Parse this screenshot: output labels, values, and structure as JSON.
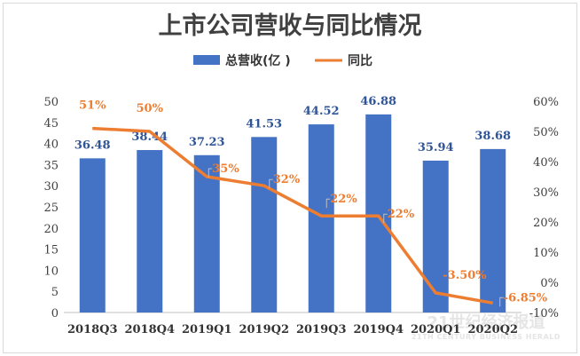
{
  "chart_data": {
    "type": "bar+line",
    "title": "上市公司营收与同比情况",
    "categories": [
      "2018Q3",
      "2018Q4",
      "2019Q1",
      "2019Q2",
      "2019Q3",
      "2019Q4",
      "2020Q1",
      "2020Q2"
    ],
    "series": [
      {
        "name": "总营收(亿 )",
        "type": "bar",
        "axis": "left",
        "color": "#4472c4",
        "values": [
          36.48,
          38.44,
          37.23,
          41.53,
          44.52,
          46.88,
          35.94,
          38.68
        ],
        "labels": [
          "36.48",
          "38.44",
          "37.23",
          "41.53",
          "44.52",
          "46.88",
          "35.94",
          "38.68"
        ]
      },
      {
        "name": "同比",
        "type": "line",
        "axis": "right",
        "color": "#ed7d31",
        "values": [
          51,
          50,
          35,
          32,
          22,
          22,
          -3.5,
          -6.85
        ],
        "labels": [
          "51%",
          "50%",
          "35%",
          "32%",
          "22%",
          "22%",
          "-3.50%",
          "-6.85%"
        ]
      }
    ],
    "left_axis": {
      "min": 0,
      "max": 50,
      "step": 5,
      "ticks": [
        "0",
        "5",
        "10",
        "15",
        "20",
        "25",
        "30",
        "35",
        "40",
        "45",
        "50"
      ]
    },
    "right_axis": {
      "min": -10,
      "max": 60,
      "step": 10,
      "ticks": [
        "-10%",
        "0%",
        "10%",
        "20%",
        "30%",
        "40%",
        "50%",
        "60%"
      ]
    },
    "legend_position": "top-center",
    "grid": false
  },
  "watermark": {
    "cn": "21世纪经济报道",
    "en": "21TH CENTURY BUSINESS HERALD"
  }
}
